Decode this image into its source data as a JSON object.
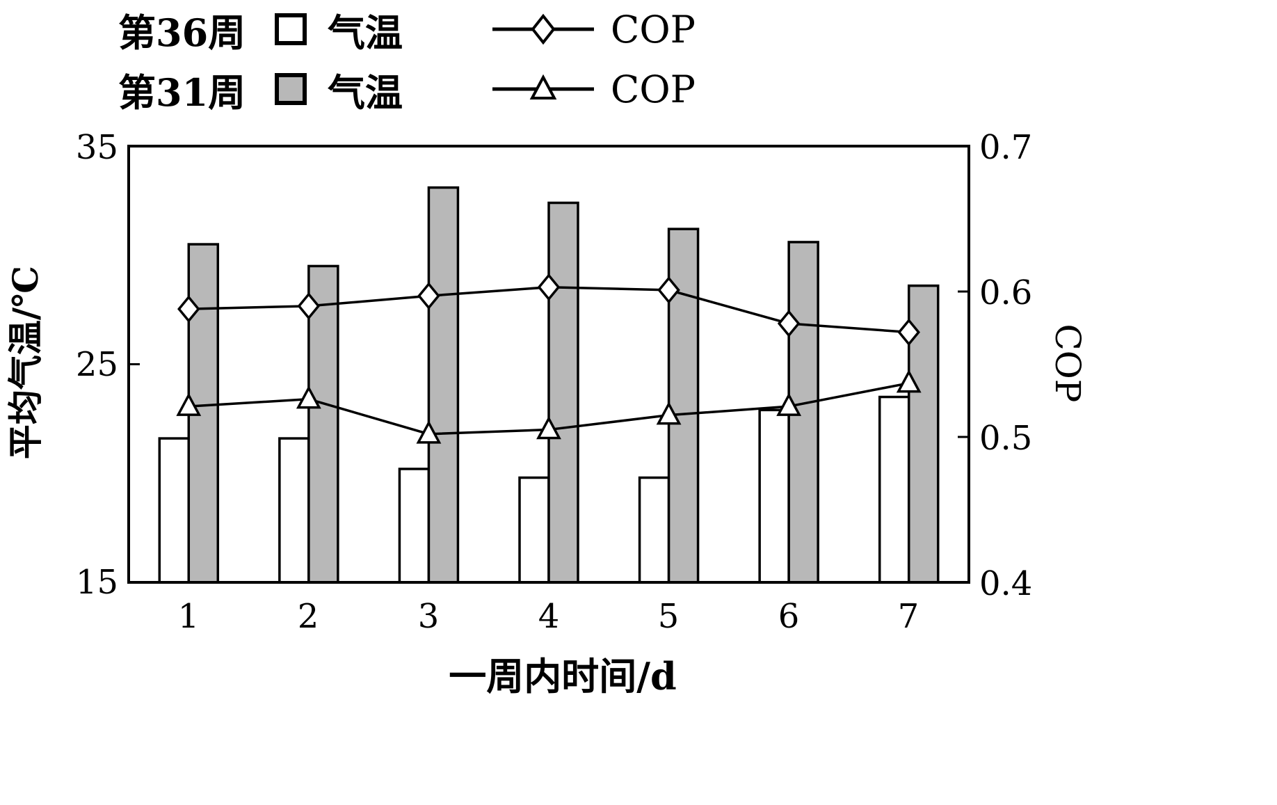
{
  "colors": {
    "week36_bar": "#ffffff",
    "week31_bar": "#b8b8b8",
    "axis": "#000000",
    "background": "#ffffff"
  },
  "legend": {
    "rows": [
      {
        "week": "第36周",
        "bar_label": "气温",
        "line_label": "COP",
        "swatch": "open-square",
        "marker": "open-diamond"
      },
      {
        "week": "第31周",
        "bar_label": "气温",
        "line_label": "COP",
        "swatch": "filled-square",
        "marker": "open-triangle"
      }
    ]
  },
  "chart_data": {
    "type": "bar",
    "subtype": "grouped-bars-with-lines",
    "categories": [
      "1",
      "2",
      "3",
      "4",
      "5",
      "6",
      "7"
    ],
    "bar_series": [
      {
        "name": "第36周 气温",
        "style": "open",
        "fill": "#ffffff",
        "axis": "left",
        "values": [
          21.6,
          21.6,
          20.2,
          19.8,
          19.8,
          22.9,
          23.5
        ]
      },
      {
        "name": "第31周 气温",
        "style": "filled",
        "fill": "#b8b8b8",
        "axis": "left",
        "values": [
          30.5,
          29.5,
          33.1,
          32.4,
          31.2,
          30.6,
          28.6
        ]
      }
    ],
    "line_series": [
      {
        "name": "第36周 COP",
        "marker": "open-diamond",
        "axis": "right",
        "values": [
          0.588,
          0.59,
          0.597,
          0.603,
          0.601,
          0.578,
          0.572
        ]
      },
      {
        "name": "第31周 COP",
        "marker": "open-triangle",
        "axis": "right",
        "values": [
          0.521,
          0.526,
          0.502,
          0.505,
          0.515,
          0.521,
          0.537
        ]
      }
    ],
    "left_axis": {
      "label": "平均气温/℃",
      "min": 15,
      "max": 35,
      "ticks": [
        "35",
        "25",
        "15"
      ]
    },
    "right_axis": {
      "label": "COP",
      "min": 0.4,
      "max": 0.7,
      "ticks": [
        "0.7",
        "0.6",
        "0.5",
        "0.4"
      ]
    },
    "x_axis": {
      "label": "一周内时间/d"
    },
    "grid": "off",
    "legend_position": "top-left"
  }
}
